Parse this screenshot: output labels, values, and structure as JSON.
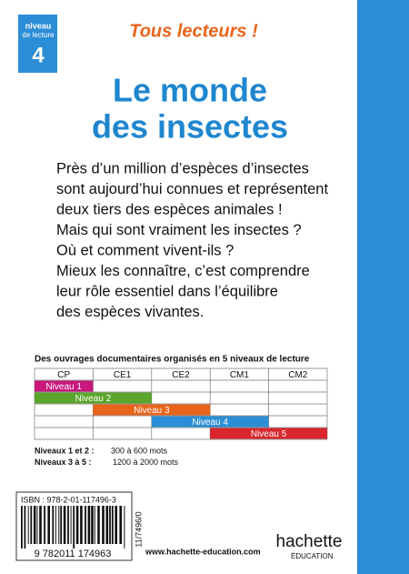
{
  "header": {
    "series": "Tous lecteurs !",
    "level_label": [
      "niveau",
      "de lecture"
    ],
    "level": "4"
  },
  "title": [
    "Le monde",
    "des insectes"
  ],
  "blurb": [
    "Près d’un million d’espèces d’insectes",
    "sont aujourd’hui connues et représentent",
    "deux tiers des espèces animales !",
    "Mais qui sont vraiment les insectes ?",
    "Où et comment vivent-ils ?",
    "Mieux les connaître, c’est comprendre",
    "leur rôle essentiel dans l’équilibre",
    "des espèces vivantes."
  ],
  "table": {
    "caption": "Des ouvrages documentaires organisés en 5 niveaux de lecture",
    "columns": [
      "CP",
      "CE1",
      "CE2",
      "CM1",
      "CM2"
    ],
    "levels": [
      "Niveau 1",
      "Niveau 2",
      "Niveau 3",
      "Niveau 4",
      "Niveau 5"
    ]
  },
  "notes": [
    {
      "label": "Niveaux 1 et 2 :",
      "text": "300 à 600 mots"
    },
    {
      "label": "Niveaux 3 à 5 :",
      "text": "1200 à 2000 mots"
    }
  ],
  "barcode": {
    "isbn": "ISBN : 978-2-01-117496-3",
    "digits": "9 782011 174963",
    "code": "11/7496/0"
  },
  "footer": {
    "website": "www.hachette-education.com",
    "brand": "hachette",
    "division": "ÉDUCATION"
  }
}
